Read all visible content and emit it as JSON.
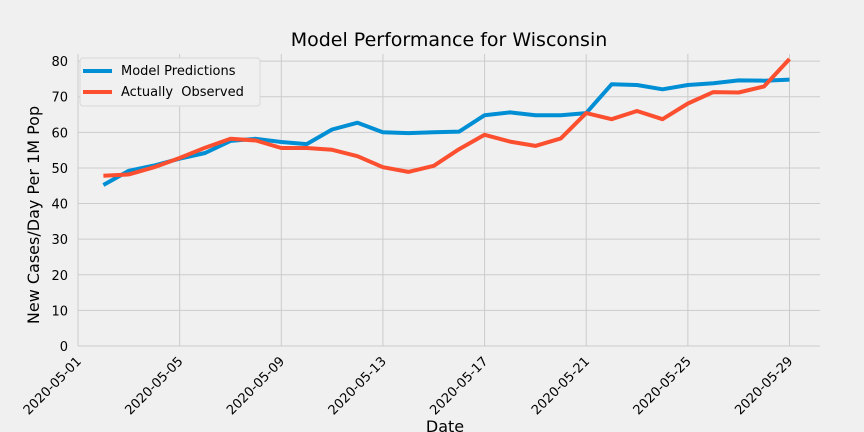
{
  "chart_data": {
    "type": "line",
    "title": "Model Performance for Wisconsin",
    "xlabel": "Date",
    "ylabel": "New Cases/Day Per 1M Pop",
    "ylim": [
      0,
      82
    ],
    "yticks": [
      0,
      10,
      20,
      30,
      40,
      50,
      60,
      70,
      80
    ],
    "xlim": [
      "2020-05-01",
      "2020-05-30"
    ],
    "xticks": [
      "2020-05-01",
      "2020-05-05",
      "2020-05-09",
      "2020-05-13",
      "2020-05-17",
      "2020-05-21",
      "2020-05-25",
      "2020-05-29"
    ],
    "grid": true,
    "legend_position": "top-left",
    "x": [
      "2020-05-02",
      "2020-05-03",
      "2020-05-04",
      "2020-05-05",
      "2020-05-06",
      "2020-05-07",
      "2020-05-08",
      "2020-05-09",
      "2020-05-10",
      "2020-05-11",
      "2020-05-12",
      "2020-05-13",
      "2020-05-14",
      "2020-05-15",
      "2020-05-16",
      "2020-05-17",
      "2020-05-18",
      "2020-05-19",
      "2020-05-20",
      "2020-05-21",
      "2020-05-22",
      "2020-05-23",
      "2020-05-24",
      "2020-05-25",
      "2020-05-26",
      "2020-05-27",
      "2020-05-28",
      "2020-05-29"
    ],
    "series": [
      {
        "name": "Model Predictions",
        "color": "#008fd5",
        "values": [
          45.2,
          49.2,
          50.7,
          52.6,
          54.2,
          57.6,
          58.2,
          57.3,
          56.7,
          60.8,
          62.7,
          60.0,
          59.8,
          60.0,
          60.2,
          64.8,
          65.6,
          64.8,
          64.8,
          65.4,
          73.5,
          73.3,
          72.1,
          73.3,
          73.8,
          74.6,
          74.5,
          74.8
        ]
      },
      {
        "name": "Actually  Observed",
        "color": "#fc4f30",
        "values": [
          47.8,
          48.2,
          50.2,
          52.8,
          55.7,
          58.2,
          57.7,
          55.6,
          55.6,
          55.1,
          53.3,
          50.2,
          48.9,
          50.6,
          55.3,
          59.3,
          57.4,
          56.2,
          58.3,
          65.4,
          63.7,
          66.0,
          63.7,
          68.1,
          71.3,
          71.2,
          72.9,
          80.6
        ]
      }
    ]
  }
}
